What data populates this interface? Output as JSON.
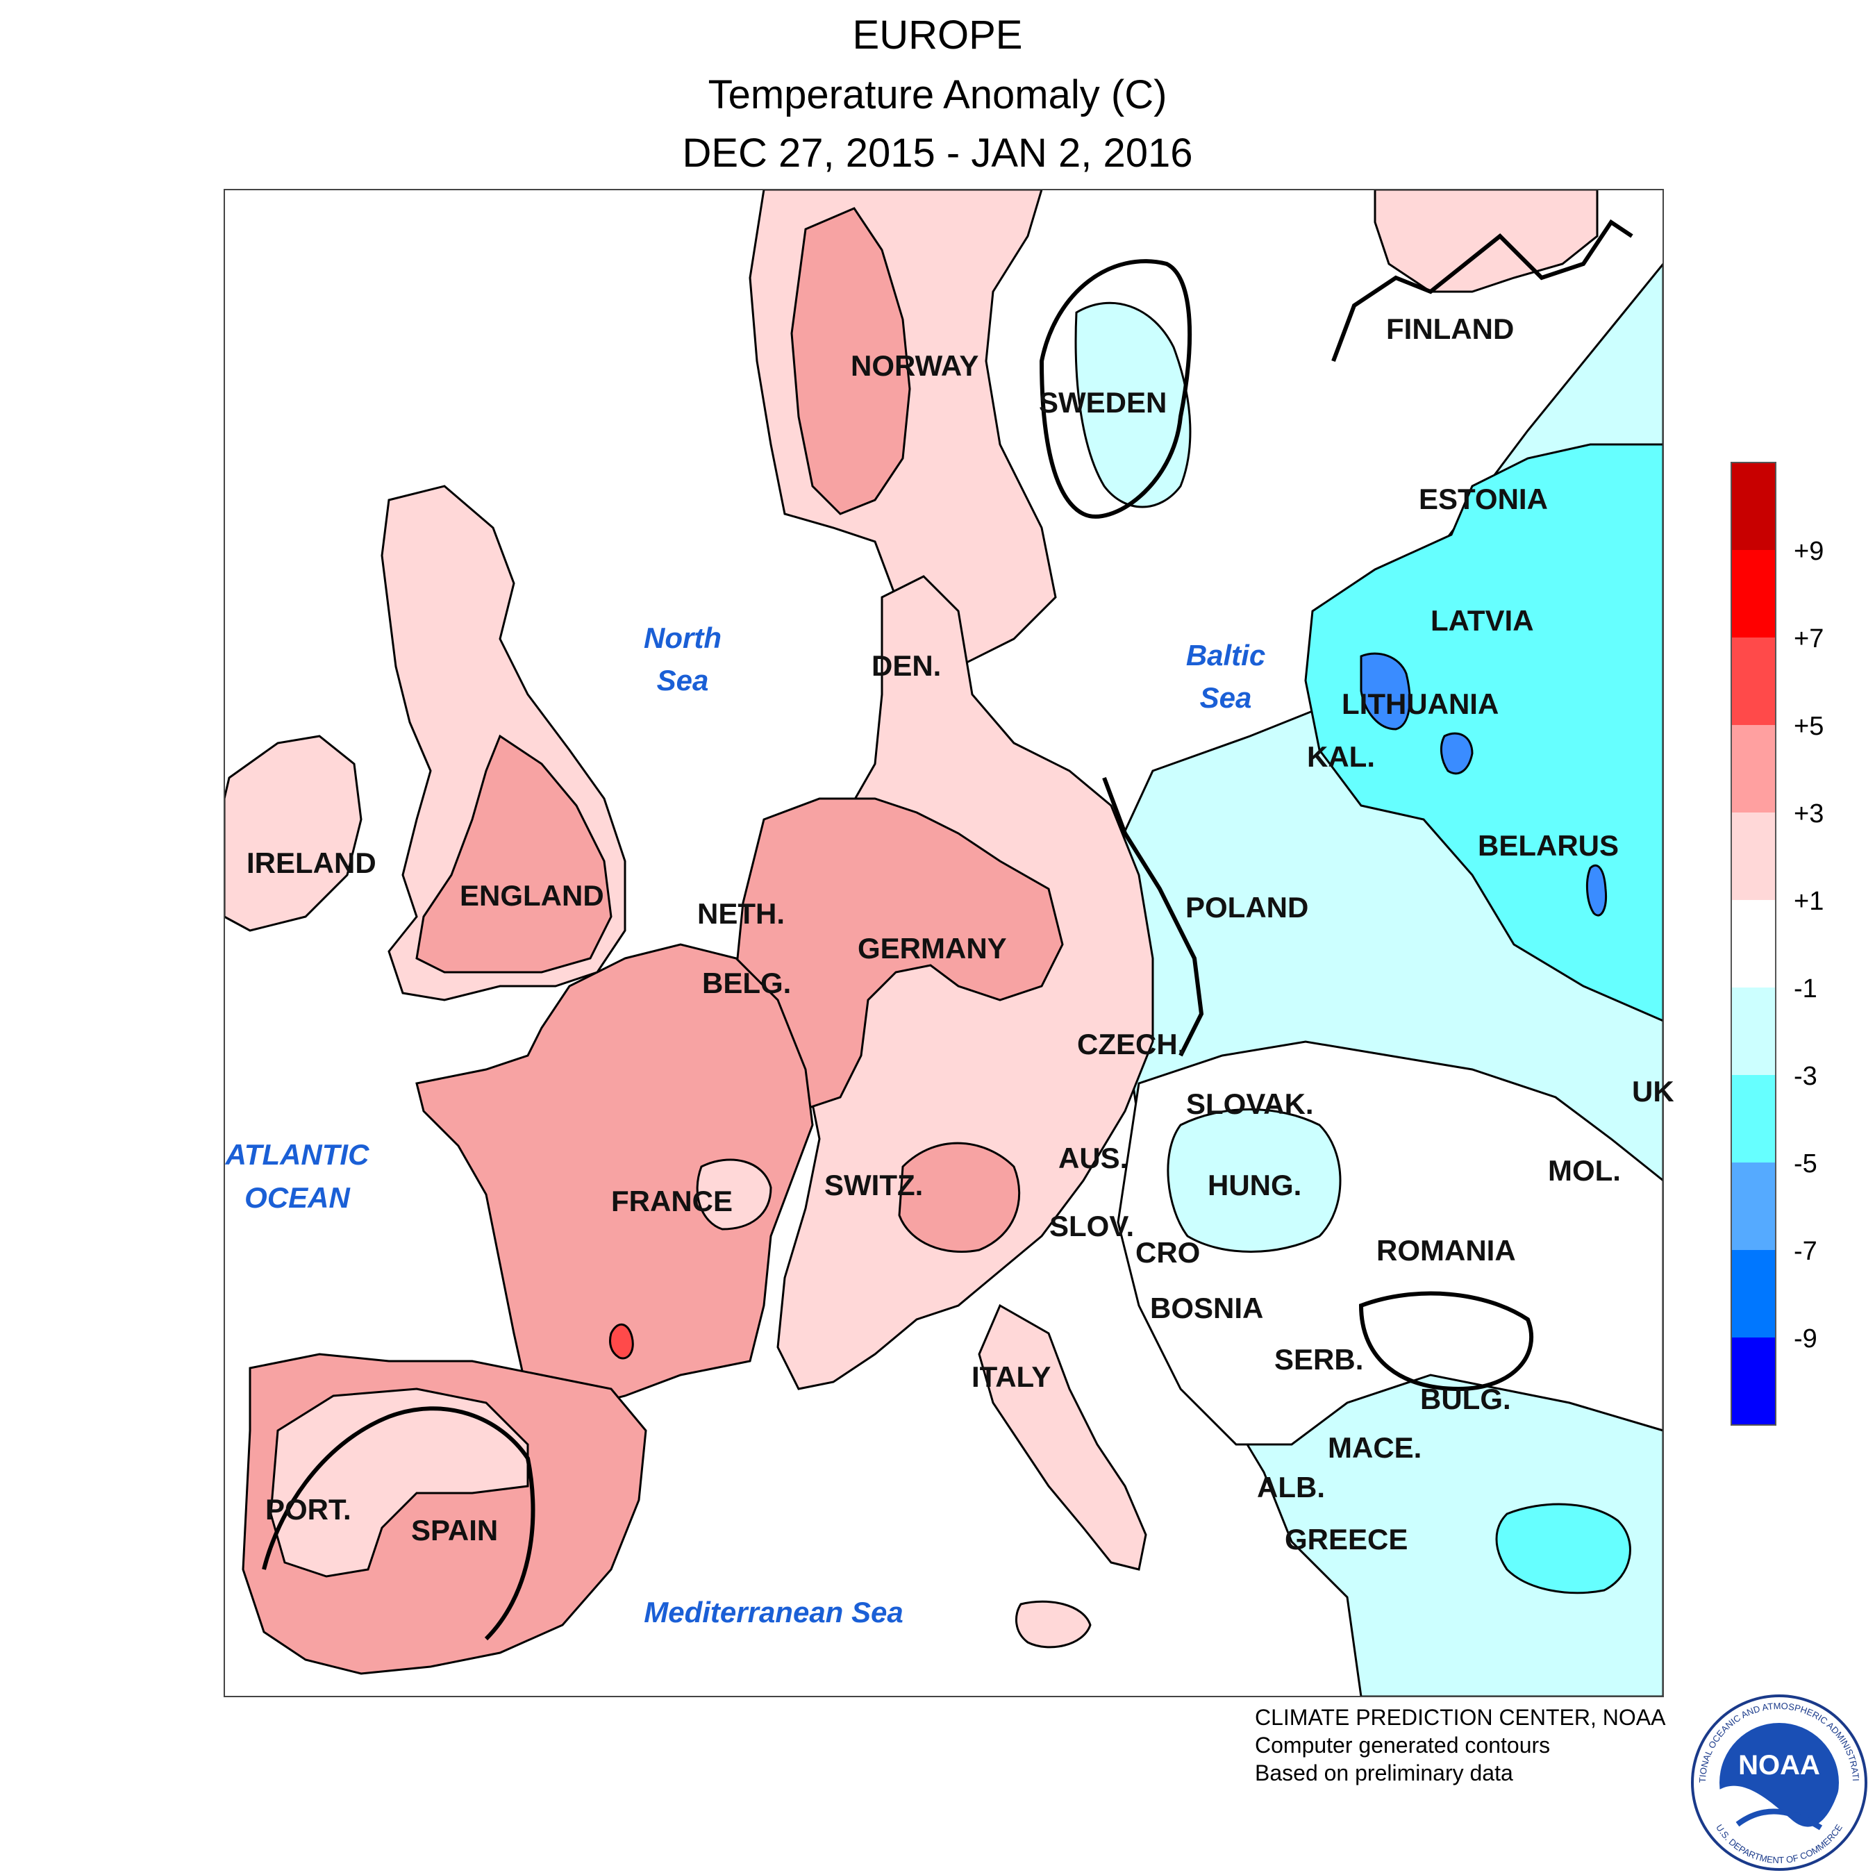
{
  "title": {
    "line1": "EUROPE",
    "line2": "Temperature Anomaly (C)",
    "line3": "DEC 27, 2015 - JAN 2, 2016"
  },
  "map": {
    "countries": [
      "NORWAY",
      "SWEDEN",
      "FINLAND",
      "ESTONIA",
      "LATVIA",
      "LITHUANIA",
      "KAL.",
      "DEN.",
      "IRELAND",
      "ENGLAND",
      "NETH.",
      "BELG.",
      "GERMANY",
      "POLAND",
      "BELARUS",
      "CZECH.",
      "SLOVAK.",
      "UK",
      "AUS.",
      "SWITZ.",
      "FRANCE",
      "HUNG.",
      "MOL.",
      "SLOV.",
      "CRO",
      "ROMANIA",
      "BOSNIA",
      "SERB.",
      "ITALY",
      "BULG.",
      "MACE.",
      "ALB.",
      "GREECE",
      "PORT.",
      "SPAIN"
    ],
    "seas": {
      "north_sea": [
        "North",
        "Sea"
      ],
      "baltic_sea": [
        "Baltic",
        "Sea"
      ],
      "atlantic": [
        "ATLANTIC",
        "OCEAN"
      ],
      "mediterranean": "Mediterranean Sea"
    }
  },
  "colorbar": {
    "ticks": [
      "+9",
      "+7",
      "+5",
      "+3",
      "+1",
      "-1",
      "-3",
      "-5",
      "-7",
      "-9"
    ],
    "colors": [
      "#c80000",
      "#ff0000",
      "#ff4a4a",
      "#ffa0a0",
      "#ffd8d8",
      "#ffffff",
      "#ccffff",
      "#66ffff",
      "#55aaff",
      "#0077ff",
      "#0000ff"
    ]
  },
  "anomaly_colors": {
    "warm_1_3": "#ffd8d8",
    "warm_3_5": "#f7a3a3",
    "warm_5_7": "#ff4a4a",
    "cool_1_3": "#ccffff",
    "cool_3_5": "#66ffff",
    "cool_5_7": "#3a8cff"
  },
  "credits": {
    "line1": "CLIMATE PREDICTION CENTER, NOAA",
    "line2": "Computer generated contours",
    "line3": "Based on preliminary data"
  },
  "logo": {
    "text": "NOAA",
    "ring_text": "NATIONAL OCEANIC AND ATMOSPHERIC ADMINISTRATION",
    "ring_text_bottom": "U.S. DEPARTMENT OF COMMERCE"
  }
}
